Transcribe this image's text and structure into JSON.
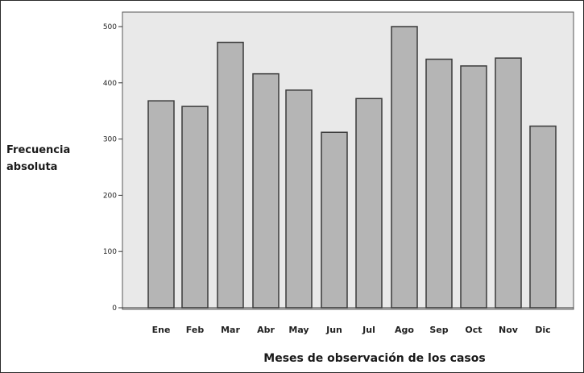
{
  "chart_data": {
    "type": "bar",
    "title": "",
    "xlabel": "Meses de observación de los casos",
    "ylabel_lines": [
      "Frecuencia",
      "absoluta"
    ],
    "categories": [
      "Ene",
      "Feb",
      "Mar",
      "Abr",
      "May",
      "Jun",
      "Jul",
      "Ago",
      "Sep",
      "Oct",
      "Nov",
      "Dic"
    ],
    "values": [
      368,
      358,
      472,
      416,
      387,
      312,
      372,
      500,
      442,
      430,
      444,
      323
    ],
    "ylim": [
      0,
      520
    ],
    "yticks": [
      0,
      100,
      200,
      300,
      400,
      500
    ],
    "grid": false,
    "legend": "none",
    "colors": {
      "bar_fill": "#b5b5b5",
      "bar_stroke": "#3a3a3a",
      "plot_background": "#e9e9e9",
      "axis": "#333333"
    }
  }
}
